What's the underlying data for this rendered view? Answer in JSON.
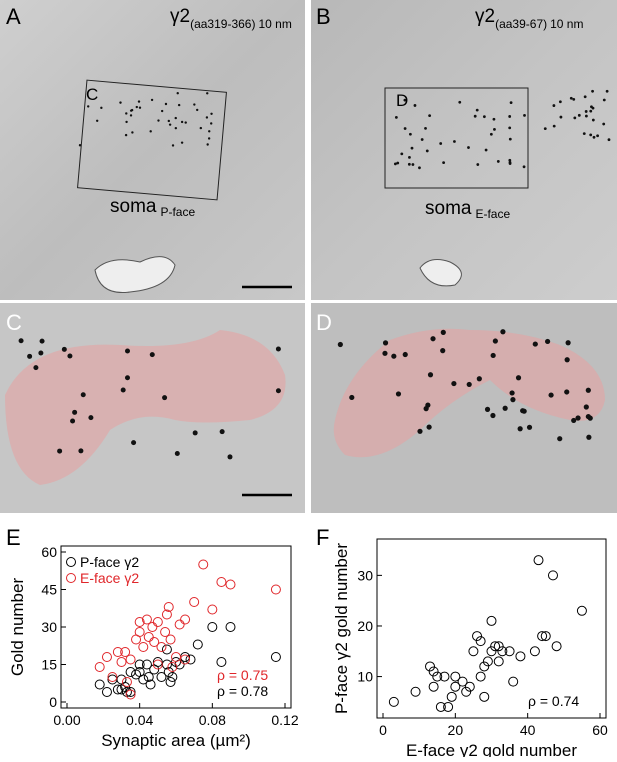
{
  "panel_labels": [
    "A",
    "B",
    "C",
    "D",
    "E",
    "F"
  ],
  "micrographs": [
    {
      "antibody": "γ2",
      "epitope": "(aa319-366)",
      "gold": "10 nm",
      "box_label": "C",
      "region": "soma",
      "face": "P-face"
    },
    {
      "antibody": "γ2",
      "epitope": "(aa39-67)",
      "gold": "10 nm",
      "box_label": "D",
      "region": "soma",
      "face": "E-face"
    }
  ],
  "chart_data": [
    {
      "type": "scatter",
      "x_label": "Synaptic area (µm²)",
      "y_label": "Gold number",
      "xlim": [
        0,
        0.12
      ],
      "ylim": [
        0,
        60
      ],
      "xticks": [
        {
          "value": 0,
          "label": "0.00"
        },
        0.04,
        0.08,
        0.12
      ],
      "yticks": [
        0,
        15,
        30,
        45,
        60
      ],
      "legend": "upper left",
      "series": [
        {
          "name": "P-face γ2",
          "color": "#000000",
          "x": [
            0.018,
            0.022,
            0.025,
            0.028,
            0.03,
            0.032,
            0.033,
            0.035,
            0.038,
            0.04,
            0.04,
            0.042,
            0.044,
            0.045,
            0.046,
            0.048,
            0.05,
            0.052,
            0.055,
            0.055,
            0.056,
            0.057,
            0.058,
            0.06,
            0.062,
            0.065,
            0.068,
            0.072,
            0.08,
            0.085,
            0.09,
            0.115,
            0.035,
            0.03
          ],
          "values": [
            7,
            4,
            9,
            5,
            9,
            6,
            4,
            12,
            11,
            15,
            12,
            9,
            15,
            10,
            7,
            13,
            16,
            10,
            21,
            15,
            12,
            8,
            10,
            16,
            15,
            18,
            17,
            23,
            30,
            16,
            30,
            18,
            4,
            5
          ]
        },
        {
          "name": "E-face γ2",
          "color": "#e0262a",
          "x": [
            0.018,
            0.022,
            0.025,
            0.028,
            0.03,
            0.032,
            0.033,
            0.035,
            0.035,
            0.038,
            0.04,
            0.04,
            0.042,
            0.044,
            0.045,
            0.047,
            0.048,
            0.05,
            0.052,
            0.054,
            0.055,
            0.056,
            0.057,
            0.06,
            0.062,
            0.065,
            0.065,
            0.07,
            0.075,
            0.08,
            0.085,
            0.09,
            0.115,
            0.05,
            0.058
          ],
          "values": [
            14,
            18,
            10,
            20,
            16,
            20,
            8,
            3,
            17,
            25,
            32,
            28,
            22,
            33,
            26,
            30,
            24,
            32,
            22,
            28,
            35,
            38,
            25,
            18,
            31,
            33,
            17,
            40,
            55,
            37,
            48,
            47,
            45,
            15,
            14
          ]
        }
      ],
      "annotations": [
        {
          "text": "ρ = 0.75",
          "color": "#e0262a"
        },
        {
          "text": "ρ = 0.78",
          "color": "#000000"
        }
      ]
    },
    {
      "type": "scatter",
      "x_label": "E-face γ2 gold number",
      "y_label": "P-face γ2 gold number",
      "xlim": [
        0,
        60
      ],
      "ylim": [
        3,
        36
      ],
      "xticks": [
        0,
        20,
        40,
        60
      ],
      "yticks": [
        10,
        20,
        30
      ],
      "series": [
        {
          "color": "#000000",
          "x": [
            3,
            9,
            13,
            14,
            14,
            15,
            16,
            17,
            18,
            19,
            20,
            20,
            22,
            23,
            24,
            25,
            26,
            27,
            28,
            28,
            29,
            30,
            30,
            31,
            32,
            33,
            35,
            36,
            38,
            42,
            43,
            44,
            45,
            47,
            48,
            55,
            32,
            27
          ],
          "values": [
            5,
            7,
            12,
            8,
            11,
            10,
            4,
            10,
            4,
            6,
            8,
            10,
            9,
            7,
            8,
            15,
            18,
            17,
            6,
            12,
            13,
            21,
            15,
            16,
            16,
            15,
            15,
            9,
            14,
            15,
            33,
            18,
            18,
            30,
            16,
            23,
            13,
            10
          ]
        }
      ],
      "annotations": [
        {
          "text": "ρ = 0.74",
          "color": "#000000"
        }
      ]
    }
  ]
}
